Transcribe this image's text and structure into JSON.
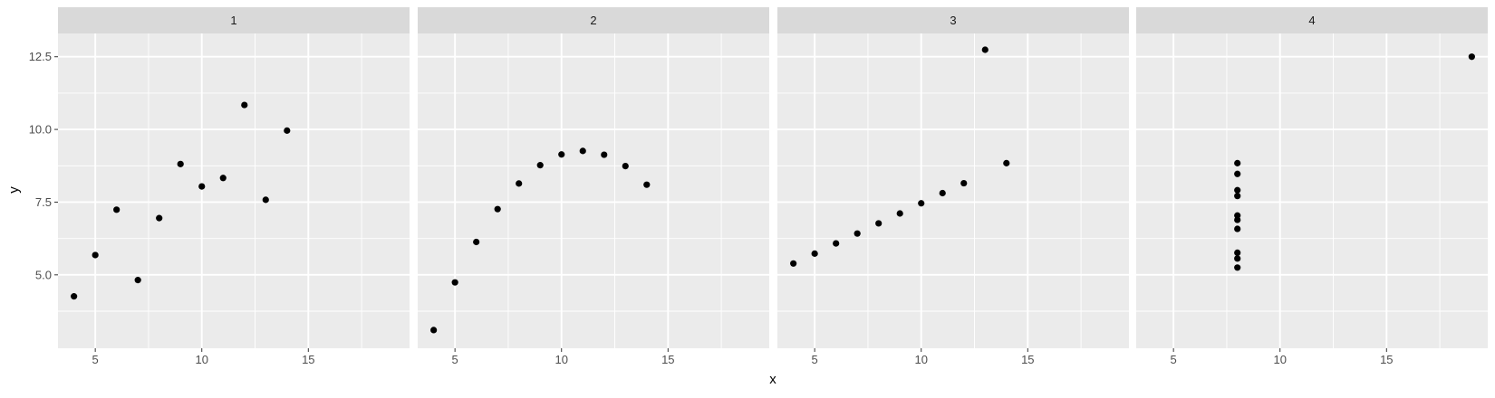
{
  "chart_data": {
    "type": "scatter",
    "xlabel": "x",
    "ylabel": "y",
    "xlim": [
      3.25,
      19.75
    ],
    "ylim": [
      2.475,
      13.3
    ],
    "x_ticks": [
      5,
      10,
      15
    ],
    "y_ticks": [
      5.0,
      7.5,
      10.0,
      12.5
    ],
    "y_tick_labels": [
      "5.0",
      "7.5",
      "10.0",
      "12.5"
    ],
    "grid": true,
    "colors": {
      "panel_bg": "#ebebeb",
      "strip_bg": "#d9d9d9",
      "grid": "#ffffff",
      "point": "#000000"
    },
    "panels": [
      {
        "label": "1",
        "x": [
          10,
          8,
          13,
          9,
          11,
          14,
          6,
          4,
          12,
          7,
          5
        ],
        "y": [
          8.04,
          6.95,
          7.58,
          8.81,
          8.33,
          9.96,
          7.24,
          4.26,
          10.84,
          4.82,
          5.68
        ]
      },
      {
        "label": "2",
        "x": [
          10,
          8,
          13,
          9,
          11,
          14,
          6,
          4,
          12,
          7,
          5
        ],
        "y": [
          9.14,
          8.14,
          8.74,
          8.77,
          9.26,
          8.1,
          6.13,
          3.1,
          9.13,
          7.26,
          4.74
        ]
      },
      {
        "label": "3",
        "x": [
          10,
          8,
          13,
          9,
          11,
          14,
          6,
          4,
          12,
          7,
          5
        ],
        "y": [
          7.46,
          6.77,
          12.74,
          7.11,
          7.81,
          8.84,
          6.08,
          5.39,
          8.15,
          6.42,
          5.73
        ]
      },
      {
        "label": "4",
        "x": [
          8,
          8,
          8,
          8,
          8,
          8,
          8,
          19,
          8,
          8,
          8
        ],
        "y": [
          6.58,
          5.76,
          7.71,
          8.84,
          8.47,
          7.04,
          5.25,
          12.5,
          5.56,
          7.91,
          6.89
        ]
      }
    ]
  }
}
